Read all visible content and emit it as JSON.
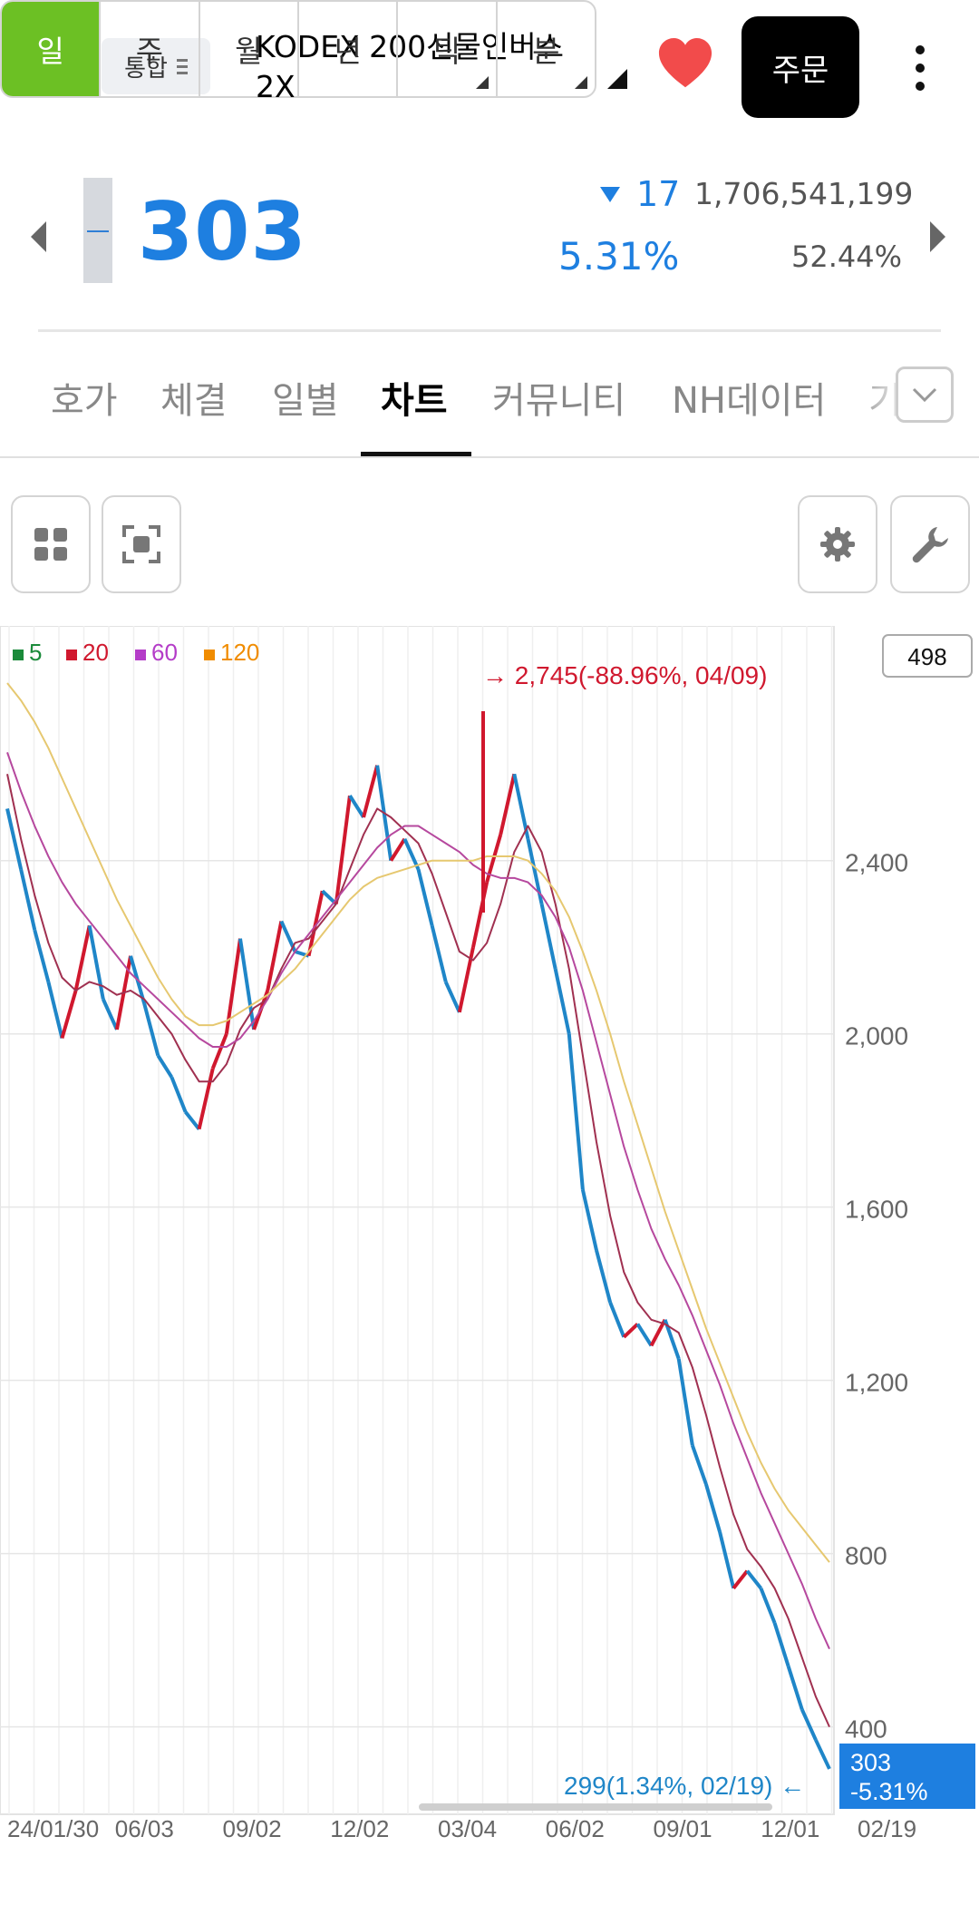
{
  "header": {
    "market_label": "통합",
    "stock_name": "KODEX 200선물인버스 2X",
    "order_label": "주문"
  },
  "quote": {
    "price": "303",
    "change": "17",
    "change_pct": "5.31%",
    "volume": "1,706,541,199",
    "ratio": "52.44%"
  },
  "tabs": [
    "호가",
    "체결",
    "일별",
    "차트",
    "커뮤니티",
    "NH데이터",
    "기"
  ],
  "active_tab": "차트",
  "periods": [
    "일",
    "주",
    "월",
    "년",
    "틱",
    "분"
  ],
  "active_period": "일",
  "colors": {
    "down_blue": "#1e7fe0",
    "up_red": "#d0182e",
    "period_active": "#6cc024",
    "ma5": "#1a8a3a",
    "ma20": "#d0182e",
    "ma60": "#b43cc8",
    "ma120": "#f08c00"
  },
  "icons": [
    "back-arrow-icon",
    "heart-icon",
    "more-vert-icon",
    "grid-icon",
    "focus-frame-icon",
    "gear-icon",
    "wrench-icon",
    "chevron-down-icon"
  ],
  "chart_data": {
    "type": "line",
    "description_note": "",
    "legend": [
      {
        "label": "5",
        "color": "#1a8a3a"
      },
      {
        "label": "20",
        "color": "#d0182e"
      },
      {
        "label": "60",
        "color": "#b43cc8"
      },
      {
        "label": "120",
        "color": "#f08c00"
      }
    ],
    "x_ticks": [
      "24/01/30",
      "06/03",
      "09/02",
      "12/02",
      "03/04",
      "06/02",
      "09/01",
      "12/01",
      "02/19"
    ],
    "y_ticks": [
      "2,400",
      "2,000",
      "1,600",
      "1,200",
      "800",
      "400"
    ],
    "y_tick_values": [
      2400,
      2000,
      1600,
      1200,
      800,
      400
    ],
    "ylim": [
      240,
      2900
    ],
    "top_badge": "498",
    "high_annotation": "2,745(-88.96%, 04/09)",
    "high_value": 2745,
    "low_annotation": "299(1.34%, 02/19)",
    "low_value": 299,
    "last_price_label": "303",
    "last_change_label": "-5.31%",
    "last_value": 303,
    "series": [
      {
        "name": "",
        "role": "close",
        "values": [
          2520,
          2380,
          2240,
          2120,
          1990,
          2100,
          2250,
          2080,
          2010,
          2180,
          2070,
          1950,
          1900,
          1820,
          1780,
          1920,
          2000,
          2220,
          2010,
          2100,
          2260,
          2190,
          2180,
          2330,
          2300,
          2550,
          2500,
          2620,
          2400,
          2450,
          2380,
          2250,
          2120,
          2050,
          2200,
          2350,
          2460,
          2600,
          2450,
          2300,
          2150,
          2000,
          1640,
          1500,
          1380,
          1300,
          1330,
          1280,
          1340,
          1250,
          1050,
          960,
          850,
          720,
          760,
          720,
          640,
          540,
          440,
          370,
          303
        ]
      },
      {
        "name": "",
        "role": "ma20",
        "values": [
          2600,
          2450,
          2320,
          2210,
          2130,
          2100,
          2120,
          2110,
          2090,
          2100,
          2080,
          2040,
          2000,
          1940,
          1890,
          1890,
          1930,
          2010,
          2060,
          2080,
          2150,
          2210,
          2220,
          2260,
          2300,
          2380,
          2460,
          2520,
          2500,
          2470,
          2440,
          2370,
          2280,
          2190,
          2170,
          2210,
          2300,
          2420,
          2480,
          2420,
          2300,
          2150,
          1950,
          1750,
          1580,
          1450,
          1380,
          1340,
          1330,
          1310,
          1230,
          1120,
          1000,
          890,
          810,
          770,
          720,
          650,
          560,
          470,
          400
        ]
      },
      {
        "name": "",
        "role": "ma60",
        "values": [
          2650,
          2560,
          2480,
          2410,
          2350,
          2300,
          2260,
          2220,
          2180,
          2140,
          2110,
          2080,
          2050,
          2020,
          1990,
          1970,
          1970,
          1990,
          2030,
          2080,
          2140,
          2190,
          2230,
          2270,
          2310,
          2350,
          2390,
          2430,
          2460,
          2480,
          2480,
          2460,
          2440,
          2420,
          2390,
          2370,
          2360,
          2360,
          2350,
          2320,
          2270,
          2200,
          2100,
          1980,
          1860,
          1740,
          1640,
          1550,
          1480,
          1420,
          1350,
          1270,
          1190,
          1100,
          1020,
          940,
          870,
          800,
          730,
          650,
          580
        ]
      },
      {
        "name": "",
        "role": "ma120",
        "values": [
          2810,
          2770,
          2720,
          2660,
          2590,
          2520,
          2450,
          2380,
          2310,
          2250,
          2190,
          2130,
          2080,
          2040,
          2020,
          2020,
          2030,
          2050,
          2070,
          2090,
          2120,
          2150,
          2190,
          2230,
          2270,
          2310,
          2340,
          2360,
          2370,
          2380,
          2390,
          2400,
          2400,
          2400,
          2400,
          2410,
          2410,
          2410,
          2400,
          2370,
          2330,
          2270,
          2190,
          2100,
          2000,
          1890,
          1790,
          1690,
          1590,
          1500,
          1410,
          1320,
          1240,
          1160,
          1080,
          1010,
          950,
          900,
          860,
          820,
          780
        ]
      }
    ]
  }
}
